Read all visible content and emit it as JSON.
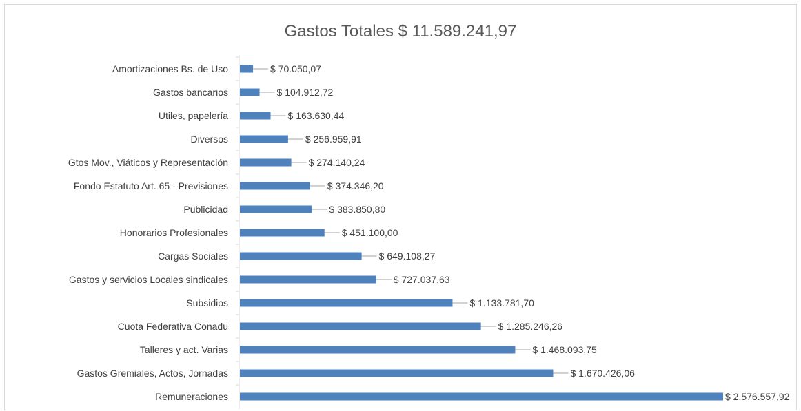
{
  "chart_data": {
    "type": "bar",
    "orientation": "horizontal",
    "title": "Gastos Totales $ 11.589.241,97",
    "xlabel": "",
    "ylabel": "",
    "grid": false,
    "legend": "none",
    "bar_color": "#4f81bd",
    "xlim": [
      0,
      2576557.92
    ],
    "categories": [
      "Amortizaciones Bs. de Uso",
      "Gastos bancarios",
      "Utiles, papelería",
      "Diversos",
      "Gtos Mov., Viáticos y Representación",
      "Fondo Estatuto  Art. 65 - Previsiones",
      "Publicidad",
      "Honorarios Profesionales",
      "Cargas Sociales",
      "Gastos y servicios Locales sindicales",
      "Subsidios",
      "Cuota Federativa Conadu",
      "Talleres y act. Varias",
      "Gastos Gremiales, Actos, Jornadas",
      "Remuneraciones"
    ],
    "values": [
      70050.07,
      104912.72,
      163630.44,
      256959.91,
      274140.24,
      374346.2,
      383850.8,
      451100.0,
      649108.27,
      727037.63,
      1133781.7,
      1285246.26,
      1468093.75,
      1670426.06,
      2576557.92
    ],
    "value_labels": [
      "$ 70.050,07",
      "$ 104.912,72",
      "$ 163.630,44",
      "$ 256.959,91",
      "$ 274.140,24",
      "$ 374.346,20",
      "$ 383.850,80",
      "$ 451.100,00",
      "$ 649.108,27",
      "$ 727.037,63",
      "$ 1.133.781,70",
      "$ 1.285.246,26",
      "$ 1.468.093,75",
      "$ 1.670.426,06",
      "$ 2.576.557,92"
    ]
  }
}
